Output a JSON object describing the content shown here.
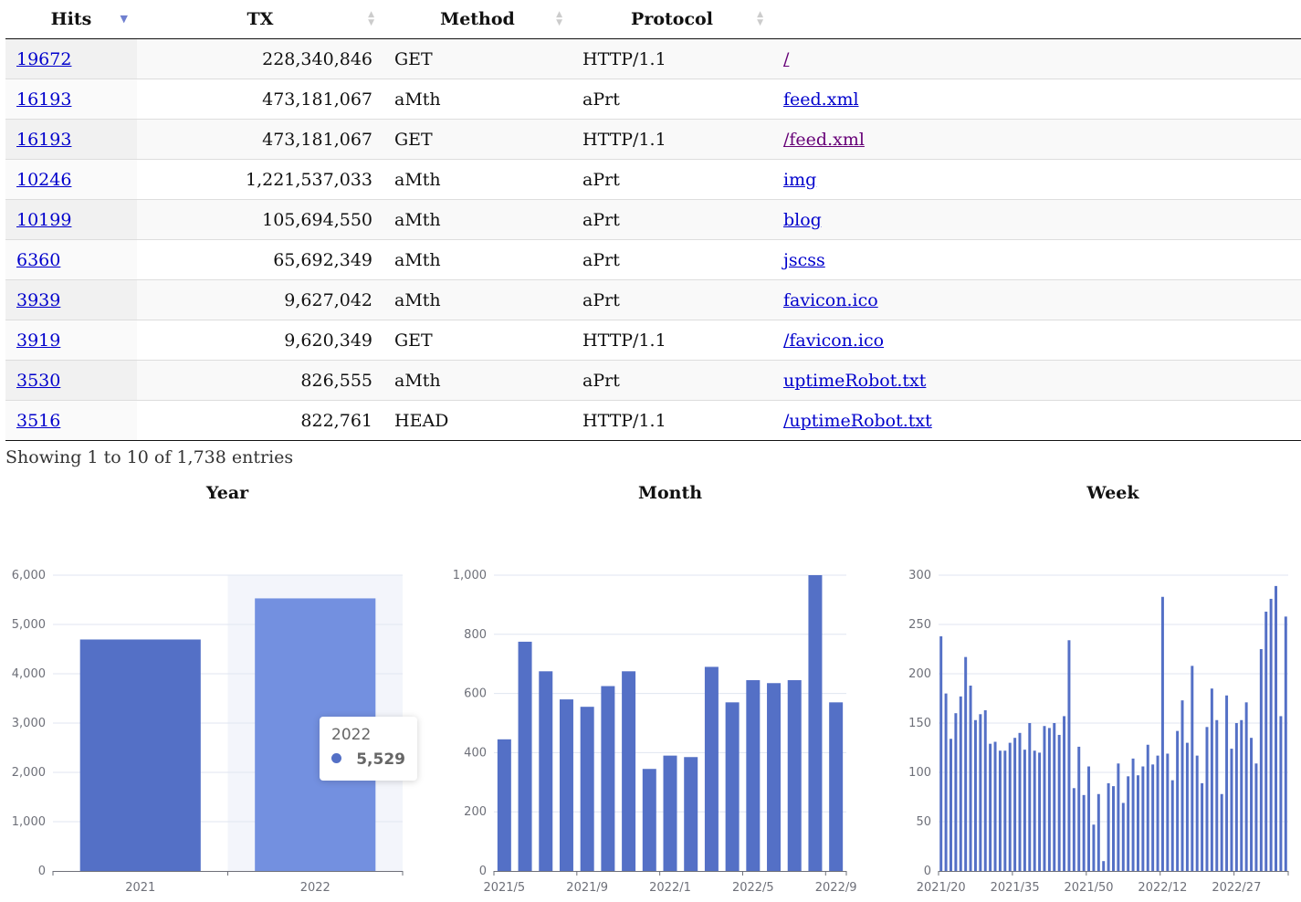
{
  "table": {
    "headers": [
      "Hits",
      "TX",
      "Method",
      "Protocol",
      ""
    ],
    "rows": [
      {
        "hits": "19672",
        "tx": "228,340,846",
        "method": "GET",
        "protocol": "HTTP/1.1",
        "path": "/"
      },
      {
        "hits": "16193",
        "tx": "473,181,067",
        "method": "aMth",
        "protocol": "aPrt",
        "path": "feed.xml"
      },
      {
        "hits": "16193",
        "tx": "473,181,067",
        "method": "GET",
        "protocol": "HTTP/1.1",
        "path": "/feed.xml"
      },
      {
        "hits": "10246",
        "tx": "1,221,537,033",
        "method": "aMth",
        "protocol": "aPrt",
        "path": "img"
      },
      {
        "hits": "10199",
        "tx": "105,694,550",
        "method": "aMth",
        "protocol": "aPrt",
        "path": "blog"
      },
      {
        "hits": "6360",
        "tx": "65,692,349",
        "method": "aMth",
        "protocol": "aPrt",
        "path": "jscss"
      },
      {
        "hits": "3939",
        "tx": "9,627,042",
        "method": "aMth",
        "protocol": "aPrt",
        "path": "favicon.ico"
      },
      {
        "hits": "3919",
        "tx": "9,620,349",
        "method": "GET",
        "protocol": "HTTP/1.1",
        "path": "/favicon.ico"
      },
      {
        "hits": "3530",
        "tx": "826,555",
        "method": "aMth",
        "protocol": "aPrt",
        "path": "uptimeRobot.txt"
      },
      {
        "hits": "3516",
        "tx": "822,761",
        "method": "HEAD",
        "protocol": "HTTP/1.1",
        "path": "/uptimeRobot.txt"
      }
    ],
    "info": "Showing 1 to 10 of 1,738 entries"
  },
  "colors": {
    "bar": "#5470c6",
    "bar_highlight": "#7390e0",
    "axis": "#6e7079",
    "grid": "#e0e6f1"
  },
  "chart_data": [
    {
      "type": "bar",
      "title": "Year",
      "categories": [
        "2021",
        "2022"
      ],
      "values": [
        4695,
        5529
      ],
      "ylim": [
        0,
        6000
      ],
      "yticks": [
        "0",
        "1,000",
        "2,000",
        "3,000",
        "4,000",
        "5,000",
        "6,000"
      ],
      "xticks": [
        "2021",
        "2022"
      ],
      "grid": true,
      "tooltip": {
        "title": "2022",
        "value": "5,529"
      }
    },
    {
      "type": "bar",
      "title": "Month",
      "categories": [
        "2021/5",
        "2021/6",
        "2021/7",
        "2021/8",
        "2021/9",
        "2021/10",
        "2021/11",
        "2021/12",
        "2022/1",
        "2022/2",
        "2022/3",
        "2022/4",
        "2022/5",
        "2022/6",
        "2022/7",
        "2022/8",
        "2022/9"
      ],
      "values": [
        445,
        775,
        675,
        580,
        555,
        625,
        675,
        345,
        390,
        385,
        690,
        570,
        645,
        635,
        645,
        1000,
        570
      ],
      "ylim": [
        0,
        1000
      ],
      "yticks": [
        "0",
        "200",
        "400",
        "600",
        "800",
        "1,000"
      ],
      "xticks": [
        "2021/5",
        "2021/9",
        "2022/1",
        "2022/5",
        "2022/9"
      ],
      "grid": true
    },
    {
      "type": "bar",
      "title": "Week",
      "categories_range": "2021/20 to 2022/37",
      "values": [
        238,
        180,
        134,
        160,
        177,
        217,
        188,
        153,
        159,
        163,
        129,
        131,
        122,
        122,
        130,
        135,
        140,
        123,
        150,
        122,
        120,
        147,
        145,
        150,
        138,
        157,
        234,
        84,
        126,
        77,
        106,
        47,
        78,
        10,
        89,
        86,
        109,
        69,
        96,
        114,
        97,
        106,
        128,
        108,
        117,
        278,
        119,
        92,
        142,
        173,
        130,
        208,
        117,
        89,
        146,
        185,
        153,
        78,
        178,
        124,
        150,
        153,
        171,
        135,
        109,
        225,
        263,
        276,
        289,
        157,
        258
      ],
      "ylim": [
        0,
        300
      ],
      "yticks": [
        "0",
        "50",
        "100",
        "150",
        "200",
        "250",
        "300"
      ],
      "xticks": [
        "2021/20",
        "2021/35",
        "2021/50",
        "2022/12",
        "2022/27"
      ],
      "grid": true
    }
  ]
}
